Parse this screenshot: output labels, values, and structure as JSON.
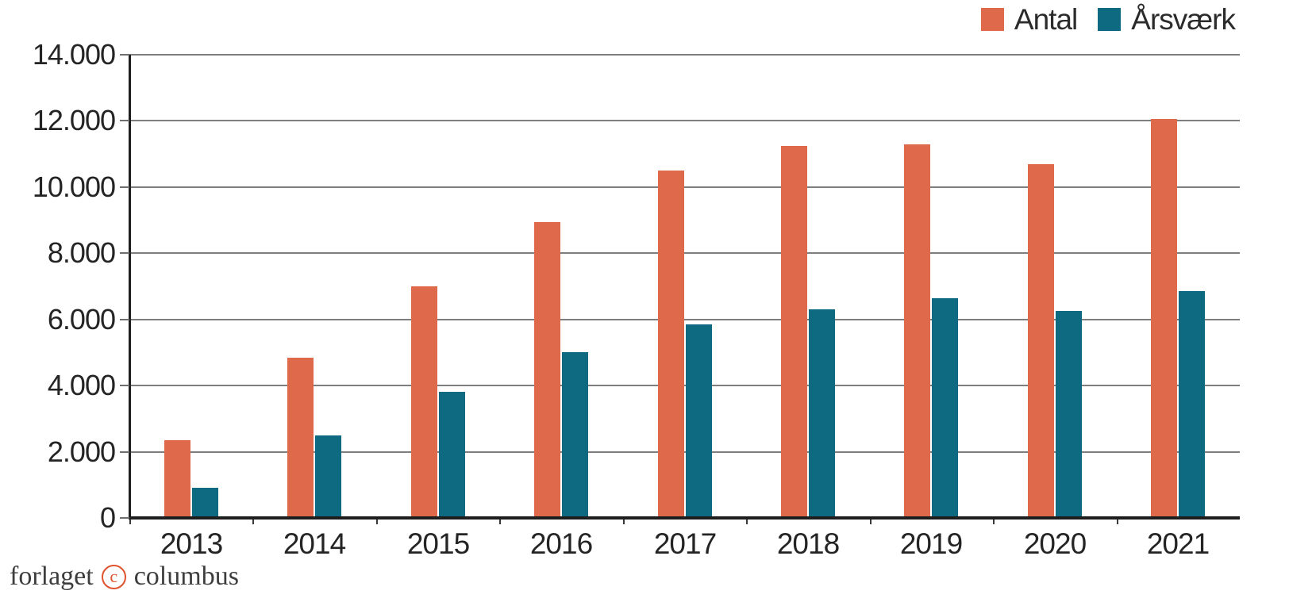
{
  "chart_data": {
    "type": "bar",
    "title": "",
    "xlabel": "",
    "ylabel": "",
    "categories": [
      "2013",
      "2014",
      "2015",
      "2016",
      "2017",
      "2018",
      "2019",
      "2020",
      "2021"
    ],
    "series": [
      {
        "name": "Antal",
        "color": "#de6a4b",
        "values": [
          2350,
          4850,
          7000,
          8950,
          10500,
          11250,
          11300,
          10700,
          12050
        ]
      },
      {
        "name": "Årsværk",
        "color": "#0e6a81",
        "values": [
          900,
          2500,
          3800,
          5000,
          5850,
          6300,
          6650,
          6250,
          6850
        ]
      }
    ],
    "ylim": [
      0,
      14000
    ],
    "ytick_step": 2000,
    "ytick_labels": [
      "0",
      "2.000",
      "4.000",
      "6.000",
      "8.000",
      "10.000",
      "12.000",
      "14.000"
    ],
    "grid": true,
    "gridline_color": "#7e7e7e",
    "axis_color": "#1e1e1e",
    "legend_position": "top-right"
  },
  "legend": {
    "items": [
      {
        "label": "Antal"
      },
      {
        "label": "Årsværk"
      }
    ]
  },
  "footer": {
    "publisher_left": "forlaget",
    "copyright_letter": "c",
    "publisher_right": "columbus"
  }
}
